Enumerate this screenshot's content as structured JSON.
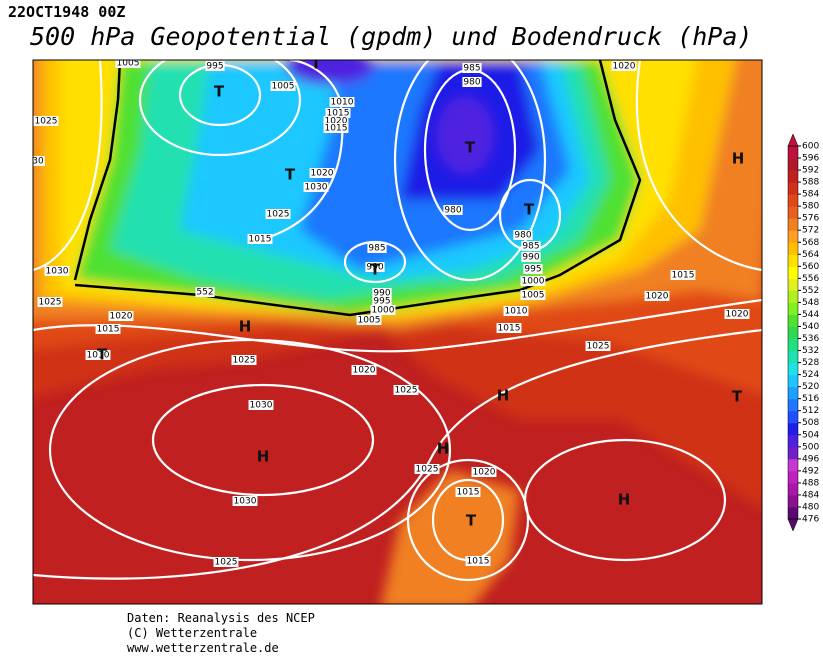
{
  "header": {
    "timestamp": "22OCT1948 00Z",
    "title": "500 hPa Geopotential (gpdm) und Bodendruck (hPa)"
  },
  "colorbar": {
    "levels": [
      476,
      480,
      484,
      488,
      492,
      496,
      500,
      504,
      508,
      512,
      516,
      520,
      524,
      528,
      532,
      536,
      540,
      544,
      548,
      552,
      556,
      560,
      564,
      568,
      572,
      576,
      580,
      584,
      588,
      592,
      596,
      600
    ],
    "colors": [
      "#5a0a6e",
      "#8a1090",
      "#a818a8",
      "#c020c0",
      "#c838d0",
      "#7020c8",
      "#5020e0",
      "#1e1ee6",
      "#2050ff",
      "#1e78ff",
      "#1ea0ff",
      "#1ec8ff",
      "#20e0e8",
      "#20e0b0",
      "#20e080",
      "#30d850",
      "#50e030",
      "#80f020",
      "#b0f020",
      "#e0f020",
      "#ffff00",
      "#ffe000",
      "#ffc000",
      "#ffa020",
      "#f08020",
      "#e86020",
      "#e04818",
      "#d03018",
      "#c02020",
      "#b01828",
      "#c01040"
    ]
  },
  "isobar_labels": [
    "1005",
    "995",
    "1005",
    "1010",
    "1015",
    "1020",
    "1015",
    "1020",
    "1030",
    "1025",
    "1015",
    "985",
    "980",
    "980",
    "980",
    "985",
    "990",
    "995",
    "1000",
    "1005",
    "985",
    "990",
    "990",
    "995",
    "1000",
    "1005",
    "1010",
    "1015",
    "1020",
    "1025",
    "30",
    "1030",
    "1025",
    "1020",
    "1015",
    "1010",
    "1015",
    "1020",
    "1020",
    "1025",
    "1025",
    "1020",
    "1025",
    "1030",
    "1030",
    "1025",
    "1020",
    "1015",
    "1015",
    "1025",
    "552"
  ],
  "pressure_centers": [
    "T",
    "T",
    "T",
    "T",
    "T",
    "T",
    "T",
    "T",
    "T",
    "H",
    "H",
    "H",
    "H",
    "H",
    "H"
  ],
  "footer": [
    "Daten: Reanalysis des NCEP",
    "(C) Wetterzentrale",
    "www.wetterzentrale.de"
  ]
}
